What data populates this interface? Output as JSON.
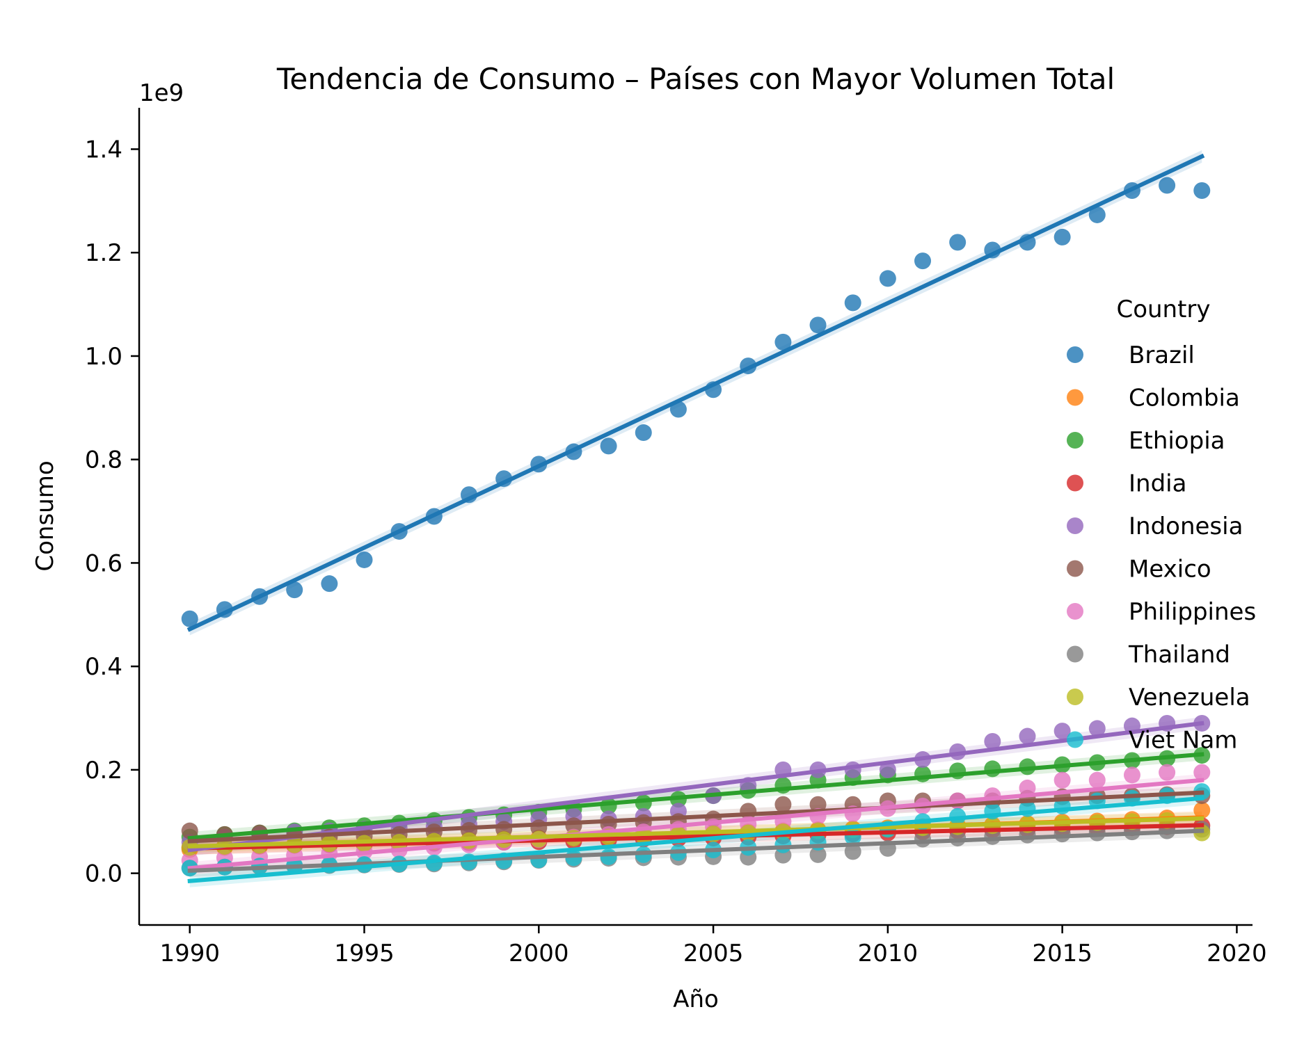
{
  "chart_data": {
    "type": "scatter",
    "title": "Tendencia de Consumo – Países con Mayor Volumen Total",
    "xlabel": "Año",
    "ylabel": "Consumo",
    "y_multiplier_label": "1e9",
    "xlim": [
      1988.55,
      2020.45
    ],
    "ylim": [
      -0.1,
      1.48
    ],
    "x_ticks": [
      "1990",
      "1995",
      "2000",
      "2005",
      "2010",
      "2015",
      "2020"
    ],
    "y_ticks": [
      "0.0",
      "0.2",
      "0.4",
      "0.6",
      "0.8",
      "1.0",
      "1.2",
      "1.4"
    ],
    "grid": false,
    "legend_title": "Country",
    "legend_position": "right",
    "x": [
      1990,
      1991,
      1992,
      1993,
      1994,
      1995,
      1996,
      1997,
      1998,
      1999,
      2000,
      2001,
      2002,
      2003,
      2004,
      2005,
      2006,
      2007,
      2008,
      2009,
      2010,
      2011,
      2012,
      2013,
      2014,
      2015,
      2016,
      2017,
      2018,
      2019
    ],
    "series": [
      {
        "name": "Brazil",
        "color": "#1f77b4",
        "fit": [
          0.472,
          1.386
        ],
        "values": [
          0.492,
          0.51,
          0.535,
          0.548,
          0.56,
          0.606,
          0.661,
          0.69,
          0.732,
          0.763,
          0.791,
          0.815,
          0.826,
          0.852,
          0.897,
          0.935,
          0.981,
          1.027,
          1.06,
          1.103,
          1.15,
          1.184,
          1.22,
          1.205,
          1.22,
          1.23,
          1.273,
          1.32,
          1.33,
          1.32
        ]
      },
      {
        "name": "Colombia",
        "color": "#ff7f0e",
        "fit": [
          0.048,
          0.108
        ],
        "values": [
          0.046,
          0.05,
          0.052,
          0.055,
          0.057,
          0.058,
          0.06,
          0.062,
          0.064,
          0.066,
          0.068,
          0.07,
          0.072,
          0.074,
          0.076,
          0.078,
          0.08,
          0.082,
          0.084,
          0.086,
          0.088,
          0.09,
          0.092,
          0.094,
          0.096,
          0.099,
          0.101,
          0.104,
          0.107,
          0.122
        ]
      },
      {
        "name": "Ethiopia",
        "color": "#2ca02c",
        "fit": [
          0.068,
          0.23
        ],
        "values": [
          0.07,
          0.075,
          0.078,
          0.082,
          0.088,
          0.092,
          0.097,
          0.102,
          0.108,
          0.113,
          0.118,
          0.124,
          0.13,
          0.136,
          0.143,
          0.15,
          0.16,
          0.17,
          0.18,
          0.185,
          0.19,
          0.192,
          0.198,
          0.202,
          0.206,
          0.21,
          0.214,
          0.218,
          0.222,
          0.228
        ]
      },
      {
        "name": "India",
        "color": "#d62728",
        "fit": [
          0.048,
          0.093
        ],
        "values": [
          0.05,
          0.052,
          0.053,
          0.054,
          0.055,
          0.056,
          0.057,
          0.058,
          0.059,
          0.06,
          0.061,
          0.062,
          0.064,
          0.066,
          0.067,
          0.068,
          0.07,
          0.072,
          0.074,
          0.076,
          0.078,
          0.08,
          0.082,
          0.084,
          0.085,
          0.086,
          0.087,
          0.088,
          0.09,
          0.092
        ]
      },
      {
        "name": "Indonesia",
        "color": "#9467bd",
        "fit": [
          0.045,
          0.29
        ],
        "values": [
          0.06,
          0.07,
          0.075,
          0.08,
          0.082,
          0.085,
          0.088,
          0.09,
          0.095,
          0.1,
          0.105,
          0.11,
          0.105,
          0.11,
          0.12,
          0.15,
          0.17,
          0.2,
          0.2,
          0.2,
          0.2,
          0.22,
          0.235,
          0.255,
          0.265,
          0.275,
          0.28,
          0.285,
          0.29,
          0.29
        ]
      },
      {
        "name": "Mexico",
        "color": "#8c564b",
        "fit": [
          0.062,
          0.156
        ],
        "values": [
          0.082,
          0.075,
          0.078,
          0.072,
          0.07,
          0.072,
          0.075,
          0.08,
          0.083,
          0.085,
          0.088,
          0.092,
          0.095,
          0.098,
          0.1,
          0.105,
          0.12,
          0.133,
          0.133,
          0.133,
          0.14,
          0.14,
          0.14,
          0.14,
          0.145,
          0.148,
          0.15,
          0.15,
          0.152,
          0.15
        ]
      },
      {
        "name": "Philippines",
        "color": "#e377c2",
        "fit": [
          0.01,
          0.18
        ],
        "values": [
          0.025,
          0.03,
          0.032,
          0.035,
          0.038,
          0.042,
          0.045,
          0.05,
          0.055,
          0.06,
          0.065,
          0.07,
          0.075,
          0.08,
          0.085,
          0.09,
          0.095,
          0.1,
          0.11,
          0.115,
          0.125,
          0.13,
          0.14,
          0.15,
          0.165,
          0.18,
          0.18,
          0.19,
          0.195,
          0.195
        ]
      },
      {
        "name": "Thailand",
        "color": "#7f7f7f",
        "fit": [
          0.005,
          0.082
        ],
        "values": [
          0.01,
          0.012,
          0.013,
          0.014,
          0.015,
          0.016,
          0.017,
          0.018,
          0.02,
          0.022,
          0.025,
          0.027,
          0.029,
          0.03,
          0.031,
          0.032,
          0.031,
          0.035,
          0.036,
          0.042,
          0.048,
          0.066,
          0.068,
          0.071,
          0.074,
          0.076,
          0.078,
          0.08,
          0.082,
          0.085
        ]
      },
      {
        "name": "Venezuela",
        "color": "#bcbd22",
        "fit": [
          0.052,
          0.106
        ],
        "values": [
          0.05,
          0.052,
          0.054,
          0.055,
          0.057,
          0.058,
          0.06,
          0.062,
          0.063,
          0.065,
          0.066,
          0.068,
          0.07,
          0.072,
          0.074,
          0.076,
          0.078,
          0.08,
          0.082,
          0.084,
          0.086,
          0.088,
          0.09,
          0.092,
          0.094,
          0.096,
          0.098,
          0.1,
          0.102,
          0.078
        ]
      },
      {
        "name": "Viet Nam",
        "color": "#17becf",
        "fit": [
          -0.015,
          0.145
        ],
        "values": [
          0.01,
          0.012,
          0.014,
          0.015,
          0.016,
          0.017,
          0.018,
          0.02,
          0.022,
          0.024,
          0.026,
          0.03,
          0.032,
          0.036,
          0.04,
          0.045,
          0.05,
          0.055,
          0.06,
          0.07,
          0.085,
          0.1,
          0.11,
          0.12,
          0.125,
          0.13,
          0.14,
          0.145,
          0.15,
          0.158
        ]
      }
    ]
  }
}
